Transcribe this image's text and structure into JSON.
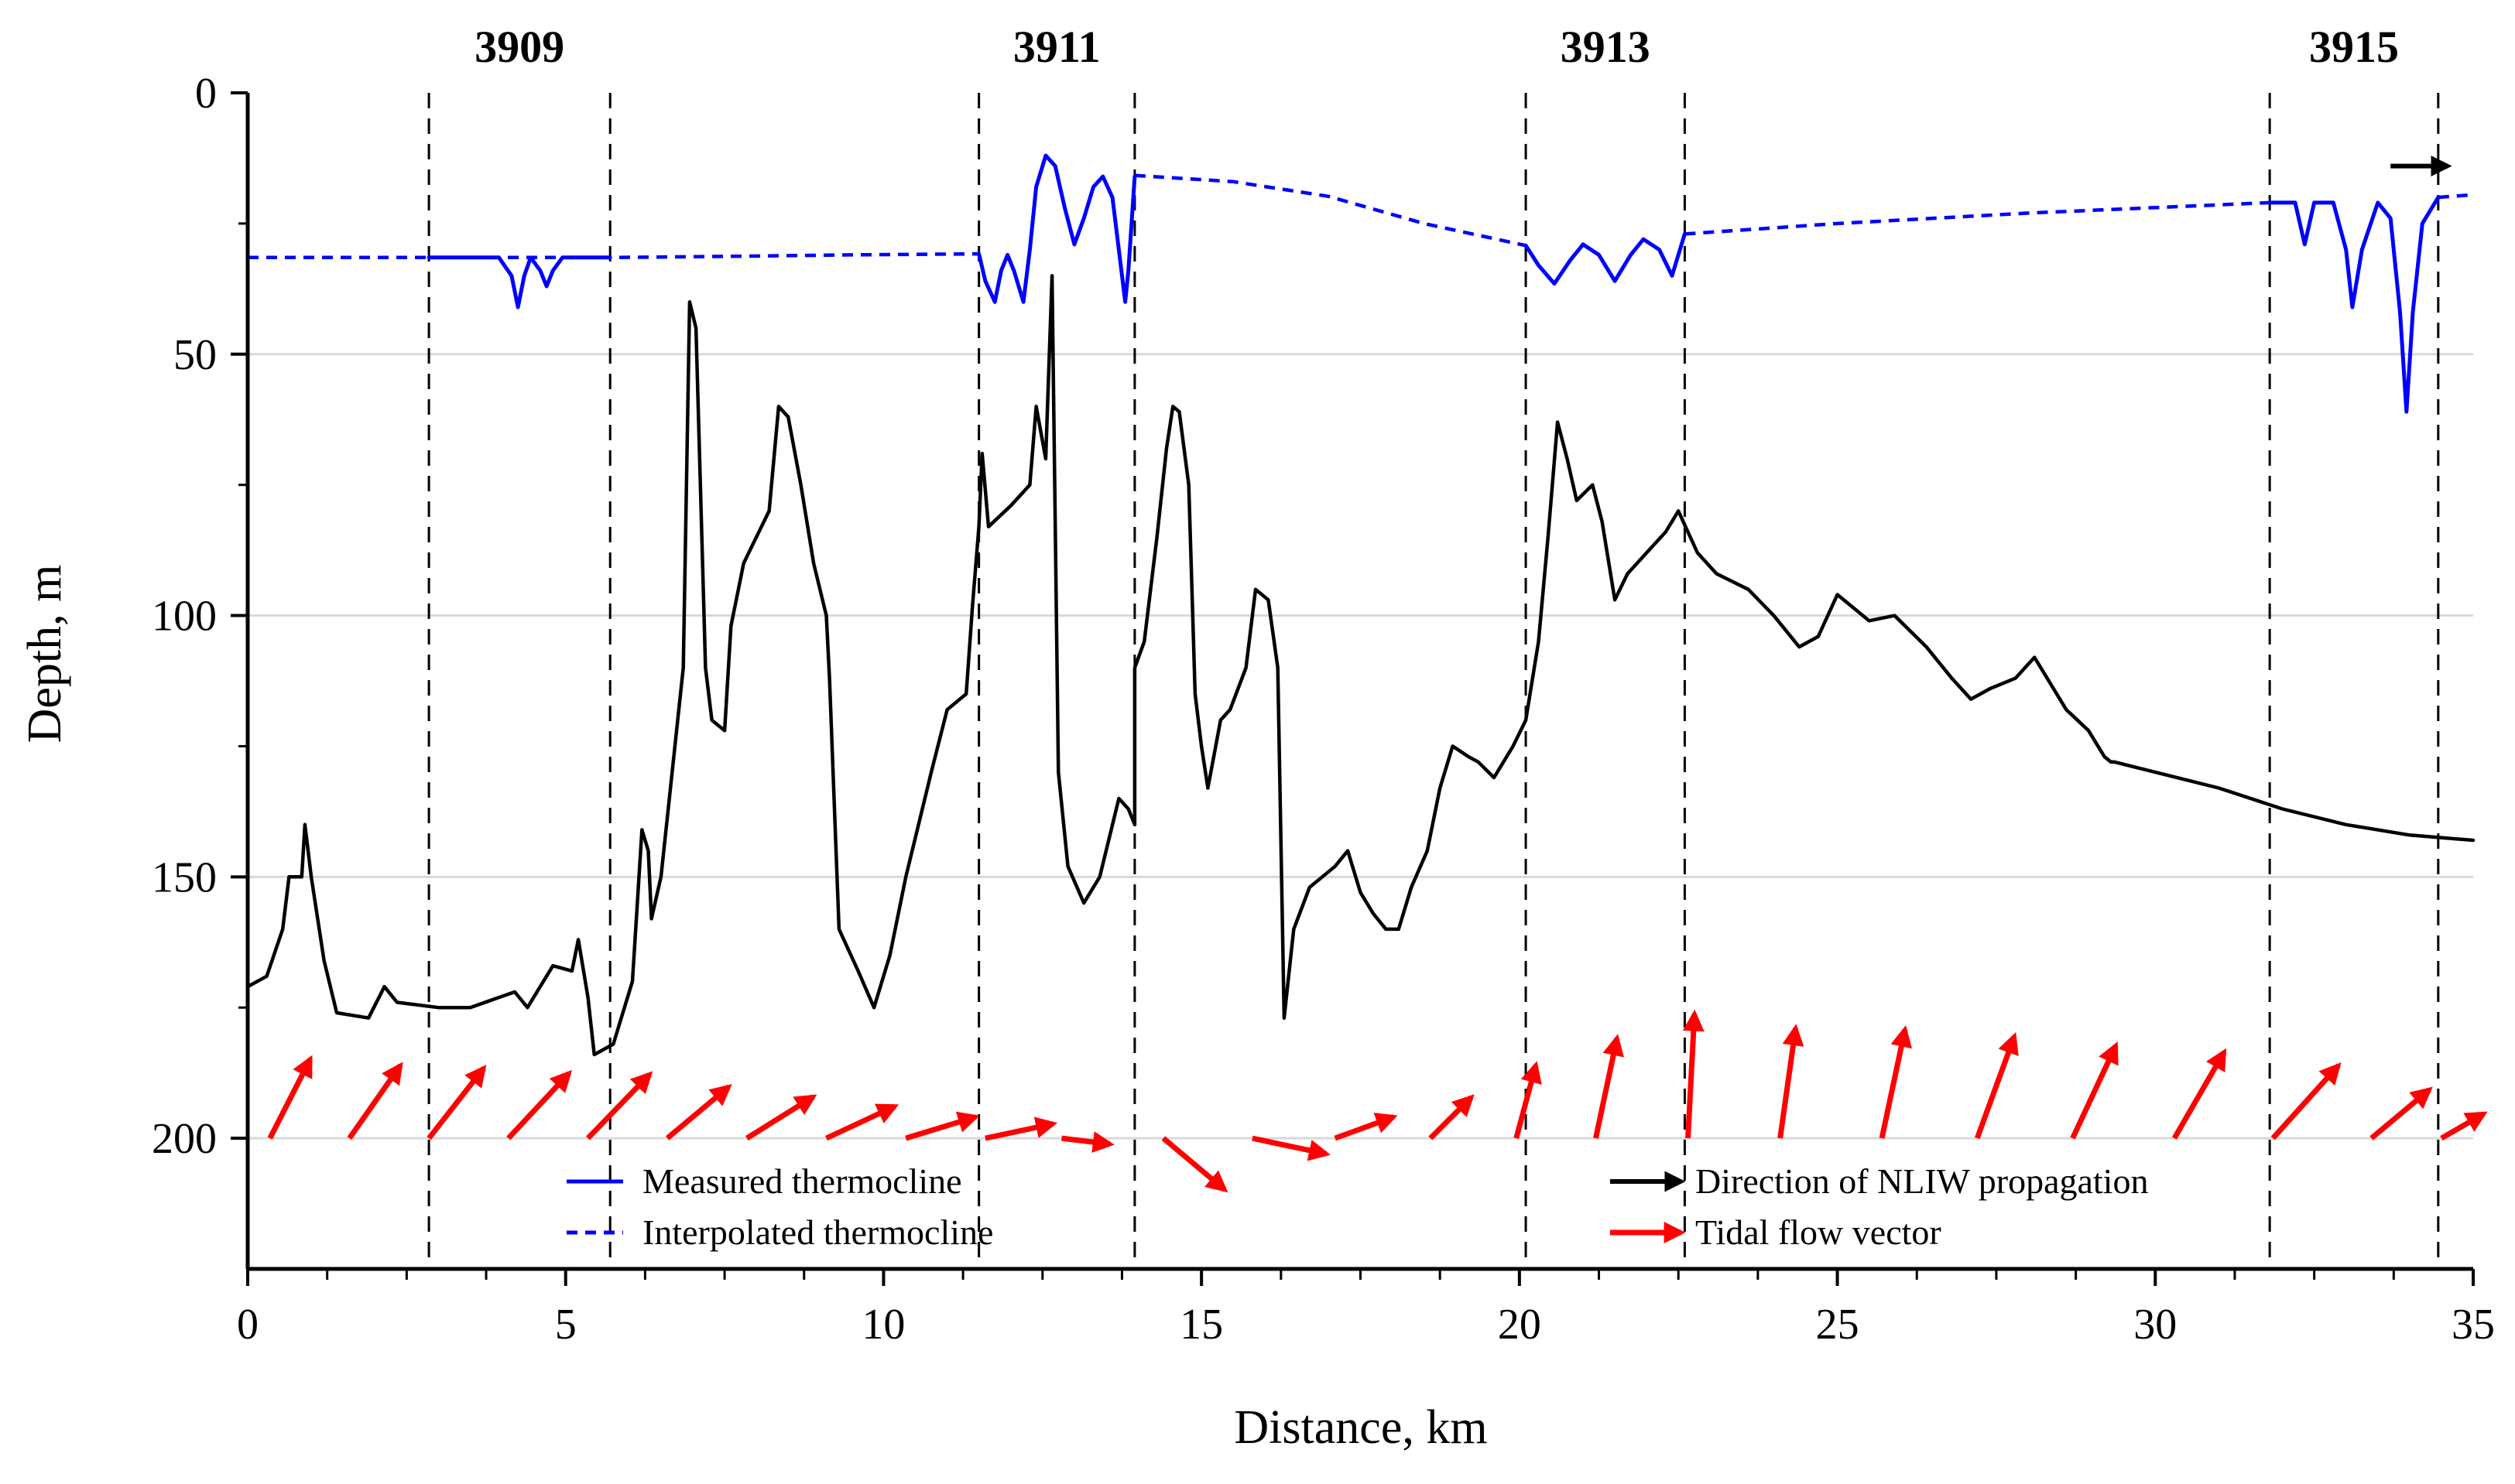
{
  "chart_data": {
    "type": "line",
    "title": "",
    "xlabel": "Distance, km",
    "ylabel": "Depth, m",
    "xlim": [
      0,
      35
    ],
    "ylim": [
      0,
      225
    ],
    "y_inverted": true,
    "x_ticks": [
      0,
      5,
      10,
      15,
      20,
      25,
      30,
      35
    ],
    "y_ticks": [
      0,
      50,
      100,
      150,
      200
    ],
    "gridlines": "horizontal",
    "stations": [
      {
        "label": "3909",
        "start_km": 2.85,
        "end_km": 5.7
      },
      {
        "label": "3911",
        "start_km": 11.5,
        "end_km": 13.95
      },
      {
        "label": "3913",
        "start_km": 20.1,
        "end_km": 22.6
      },
      {
        "label": "3915",
        "start_km": 31.8,
        "end_km": 34.45
      }
    ],
    "legend": {
      "measured": "Measured thermocline",
      "interpolated": "Interpolated thermocline",
      "propagation": "Direction of NLIW propagation",
      "tidal": "Tidal flow vector"
    },
    "colors": {
      "bathymetry": "#000000",
      "thermocline": "#0000ff",
      "tidal": "#ff0000",
      "propagation": "#000000"
    },
    "series": [
      {
        "name": "Bathymetry",
        "style": "solid-black",
        "points": [
          [
            0,
            171
          ],
          [
            0.3,
            169
          ],
          [
            0.55,
            160
          ],
          [
            0.65,
            150
          ],
          [
            0.85,
            150
          ],
          [
            0.9,
            140
          ],
          [
            1.0,
            150
          ],
          [
            1.2,
            166
          ],
          [
            1.4,
            176
          ],
          [
            1.9,
            177
          ],
          [
            2.15,
            171
          ],
          [
            2.35,
            174
          ],
          [
            3.0,
            175
          ],
          [
            3.5,
            175
          ],
          [
            4.2,
            172
          ],
          [
            4.4,
            175
          ],
          [
            4.8,
            167
          ],
          [
            5.1,
            168
          ],
          [
            5.2,
            162
          ],
          [
            5.35,
            173
          ],
          [
            5.45,
            184
          ],
          [
            5.75,
            182
          ],
          [
            6.05,
            170
          ],
          [
            6.2,
            141
          ],
          [
            6.3,
            145
          ],
          [
            6.35,
            158
          ],
          [
            6.5,
            150
          ],
          [
            6.85,
            110
          ],
          [
            6.95,
            40
          ],
          [
            7.05,
            45
          ],
          [
            7.2,
            110
          ],
          [
            7.3,
            120
          ],
          [
            7.5,
            122
          ],
          [
            7.6,
            102
          ],
          [
            7.8,
            90
          ],
          [
            8.0,
            85
          ],
          [
            8.2,
            80
          ],
          [
            8.35,
            60
          ],
          [
            8.5,
            62
          ],
          [
            8.7,
            75
          ],
          [
            8.9,
            90
          ],
          [
            9.1,
            100
          ],
          [
            9.15,
            112
          ],
          [
            9.3,
            160
          ],
          [
            9.6,
            168
          ],
          [
            9.85,
            175
          ],
          [
            10.1,
            165
          ],
          [
            10.35,
            150
          ],
          [
            10.55,
            140
          ],
          [
            10.75,
            130
          ],
          [
            11.0,
            118
          ],
          [
            11.3,
            115
          ],
          [
            11.4,
            98
          ],
          [
            11.5,
            83
          ],
          [
            11.55,
            69
          ],
          [
            11.65,
            83
          ],
          [
            12.0,
            79
          ],
          [
            12.3,
            75
          ],
          [
            12.4,
            60
          ],
          [
            12.55,
            70
          ],
          [
            12.65,
            35
          ],
          [
            12.75,
            130
          ],
          [
            12.9,
            148
          ],
          [
            13.15,
            155
          ],
          [
            13.4,
            150
          ],
          [
            13.7,
            135
          ],
          [
            13.85,
            137
          ],
          [
            13.95,
            140
          ],
          [
            13.95,
            110
          ],
          [
            14.1,
            105
          ],
          [
            14.3,
            85
          ],
          [
            14.45,
            68
          ],
          [
            14.55,
            60
          ],
          [
            14.65,
            61
          ],
          [
            14.8,
            75
          ],
          [
            14.9,
            115
          ],
          [
            15.0,
            125
          ],
          [
            15.1,
            133
          ],
          [
            15.3,
            120
          ],
          [
            15.45,
            118
          ],
          [
            15.7,
            110
          ],
          [
            15.85,
            95
          ],
          [
            16.05,
            97
          ],
          [
            16.2,
            110
          ],
          [
            16.3,
            177
          ],
          [
            16.45,
            160
          ],
          [
            16.7,
            152
          ],
          [
            16.9,
            150
          ],
          [
            17.1,
            148
          ],
          [
            17.3,
            145
          ],
          [
            17.5,
            153
          ],
          [
            17.7,
            157
          ],
          [
            17.9,
            160
          ],
          [
            18.1,
            160
          ],
          [
            18.3,
            152
          ],
          [
            18.55,
            145
          ],
          [
            18.75,
            133
          ],
          [
            18.95,
            125
          ],
          [
            19.2,
            127
          ],
          [
            19.35,
            128
          ],
          [
            19.6,
            131
          ],
          [
            19.9,
            125
          ],
          [
            20.1,
            120
          ],
          [
            20.3,
            105
          ],
          [
            20.45,
            85
          ],
          [
            20.6,
            63
          ],
          [
            20.75,
            70
          ],
          [
            20.9,
            78
          ],
          [
            21.15,
            75
          ],
          [
            21.3,
            82
          ],
          [
            21.5,
            97
          ],
          [
            21.7,
            92
          ],
          [
            22.0,
            88
          ],
          [
            22.3,
            84
          ],
          [
            22.5,
            80
          ],
          [
            22.8,
            88
          ],
          [
            23.1,
            92
          ],
          [
            23.6,
            95
          ],
          [
            24.0,
            100
          ],
          [
            24.4,
            106
          ],
          [
            24.7,
            104
          ],
          [
            25.0,
            96
          ],
          [
            25.5,
            101
          ],
          [
            25.9,
            100
          ],
          [
            26.4,
            106
          ],
          [
            26.8,
            112
          ],
          [
            27.1,
            116
          ],
          [
            27.4,
            114
          ],
          [
            27.8,
            112
          ],
          [
            28.1,
            108
          ],
          [
            28.35,
            113
          ],
          [
            28.6,
            118
          ],
          [
            28.95,
            122
          ],
          [
            29.2,
            127
          ],
          [
            29.3,
            128
          ],
          [
            29.35,
            128
          ],
          [
            31.0,
            133
          ],
          [
            32.0,
            137
          ],
          [
            33.0,
            140
          ],
          [
            34.0,
            142
          ],
          [
            35.0,
            143
          ]
        ]
      },
      {
        "name": "Interpolated thermocline",
        "style": "dashed-blue",
        "points": [
          [
            0,
            31.5
          ],
          [
            2.85,
            31.5
          ],
          [
            5.7,
            31.5
          ],
          [
            7.5,
            31.3
          ],
          [
            9.5,
            31
          ],
          [
            11.5,
            30.8
          ]
        ]
      },
      {
        "name": "Interpolated thermocline",
        "style": "dashed-blue",
        "points": [
          [
            13.95,
            15.8
          ],
          [
            15.5,
            17
          ],
          [
            17.0,
            19.8
          ],
          [
            18.5,
            25
          ],
          [
            20.1,
            29.2
          ]
        ]
      },
      {
        "name": "Interpolated thermocline",
        "style": "dashed-blue",
        "points": [
          [
            22.6,
            27
          ],
          [
            25.0,
            25
          ],
          [
            28.0,
            23
          ],
          [
            31.8,
            21
          ]
        ]
      },
      {
        "name": "Interpolated thermocline",
        "style": "dashed-blue",
        "points": [
          [
            34.45,
            20
          ],
          [
            35,
            19.5
          ]
        ]
      },
      {
        "name": "Measured thermocline",
        "style": "solid-blue",
        "points": [
          [
            2.85,
            31.5
          ],
          [
            3.95,
            31.5
          ],
          [
            4.15,
            35
          ],
          [
            4.25,
            41
          ],
          [
            4.35,
            35
          ],
          [
            4.45,
            31.5
          ],
          [
            4.6,
            34
          ],
          [
            4.7,
            37
          ],
          [
            4.8,
            34
          ],
          [
            4.95,
            31.5
          ],
          [
            5.7,
            31.5
          ]
        ]
      },
      {
        "name": "Measured thermocline",
        "style": "solid-blue",
        "points": [
          [
            11.5,
            30.8
          ],
          [
            11.6,
            36
          ],
          [
            11.75,
            40
          ],
          [
            11.85,
            34
          ],
          [
            11.95,
            31
          ],
          [
            12.05,
            34
          ],
          [
            12.2,
            40
          ],
          [
            12.3,
            30
          ],
          [
            12.4,
            18
          ],
          [
            12.55,
            12
          ],
          [
            12.7,
            14
          ],
          [
            12.85,
            22
          ],
          [
            13.0,
            29
          ],
          [
            13.15,
            24
          ],
          [
            13.3,
            18
          ],
          [
            13.45,
            16
          ],
          [
            13.6,
            20
          ],
          [
            13.75,
            35
          ],
          [
            13.8,
            40
          ],
          [
            13.85,
            34
          ],
          [
            13.95,
            16
          ]
        ]
      },
      {
        "name": "Measured thermocline",
        "style": "solid-blue",
        "points": [
          [
            20.1,
            29.2
          ],
          [
            20.3,
            33
          ],
          [
            20.55,
            36.5
          ],
          [
            20.8,
            32
          ],
          [
            21.0,
            29
          ],
          [
            21.25,
            31
          ],
          [
            21.5,
            36
          ],
          [
            21.75,
            31
          ],
          [
            21.95,
            28
          ],
          [
            22.2,
            30
          ],
          [
            22.4,
            35
          ],
          [
            22.6,
            27
          ]
        ]
      },
      {
        "name": "Measured thermocline",
        "style": "solid-blue",
        "points": [
          [
            31.8,
            21
          ],
          [
            32.2,
            21
          ],
          [
            32.35,
            29
          ],
          [
            32.5,
            21
          ],
          [
            32.8,
            21
          ],
          [
            33.0,
            30
          ],
          [
            33.1,
            41
          ],
          [
            33.25,
            30
          ],
          [
            33.5,
            21
          ],
          [
            33.7,
            24
          ],
          [
            33.85,
            42
          ],
          [
            33.95,
            61
          ],
          [
            34.05,
            42
          ],
          [
            34.2,
            25
          ],
          [
            34.45,
            20
          ]
        ]
      }
    ],
    "tidal_vectors": [
      {
        "x_km": 0.35,
        "dir_deg": 63,
        "magnitude": 1.0
      },
      {
        "x_km": 1.6,
        "dir_deg": 55,
        "magnitude": 1.0
      },
      {
        "x_km": 2.85,
        "dir_deg": 52,
        "magnitude": 1.0
      },
      {
        "x_km": 4.1,
        "dir_deg": 47,
        "magnitude": 1.0
      },
      {
        "x_km": 5.35,
        "dir_deg": 46,
        "magnitude": 1.0
      },
      {
        "x_km": 6.6,
        "dir_deg": 40,
        "magnitude": 0.9
      },
      {
        "x_km": 7.85,
        "dir_deg": 32,
        "magnitude": 0.88
      },
      {
        "x_km": 9.1,
        "dir_deg": 25,
        "magnitude": 0.85
      },
      {
        "x_km": 10.35,
        "dir_deg": 17,
        "magnitude": 0.82
      },
      {
        "x_km": 11.6,
        "dir_deg": 12,
        "magnitude": 0.78
      },
      {
        "x_km": 12.8,
        "dir_deg": -7,
        "magnitude": 0.55
      },
      {
        "x_km": 14.4,
        "dir_deg": -40,
        "magnitude": 0.9
      },
      {
        "x_km": 15.8,
        "dir_deg": -12,
        "magnitude": 0.85
      },
      {
        "x_km": 17.1,
        "dir_deg": 20,
        "magnitude": 0.7
      },
      {
        "x_km": 18.6,
        "dir_deg": 45,
        "magnitude": 0.65
      },
      {
        "x_km": 19.95,
        "dir_deg": 75,
        "magnitude": 0.85
      },
      {
        "x_km": 21.2,
        "dir_deg": 78,
        "magnitude": 1.15
      },
      {
        "x_km": 22.65,
        "dir_deg": 87,
        "magnitude": 1.4
      },
      {
        "x_km": 24.1,
        "dir_deg": 82,
        "magnitude": 1.25
      },
      {
        "x_km": 25.7,
        "dir_deg": 78,
        "magnitude": 1.25
      },
      {
        "x_km": 27.2,
        "dir_deg": 70,
        "magnitude": 1.22
      },
      {
        "x_km": 28.7,
        "dir_deg": 65,
        "magnitude": 1.15
      },
      {
        "x_km": 30.3,
        "dir_deg": 60,
        "magnitude": 1.12
      },
      {
        "x_km": 31.85,
        "dir_deg": 48,
        "magnitude": 1.1
      },
      {
        "x_km": 33.4,
        "dir_deg": 40,
        "magnitude": 0.85
      },
      {
        "x_km": 34.5,
        "dir_deg": 30,
        "magnitude": 0.55
      }
    ],
    "propagation_arrow": {
      "x_start_km": 33.7,
      "x_end_km": 34.6,
      "depth_m": 14
    }
  }
}
